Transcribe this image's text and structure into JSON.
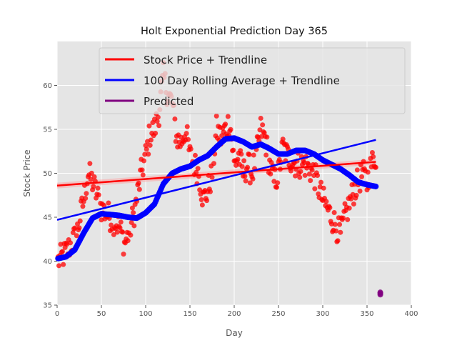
{
  "chart_data": {
    "type": "scatter",
    "title": "Holt Exponential Prediction Day 365",
    "xlabel": "Day",
    "ylabel": "Stock Price",
    "xlim": [
      0,
      400
    ],
    "ylim": [
      35,
      65
    ],
    "xticks": [
      0,
      50,
      100,
      150,
      200,
      250,
      300,
      350,
      400
    ],
    "yticks": [
      35,
      40,
      45,
      50,
      55,
      60
    ],
    "grid": true,
    "legend_position": "top-right",
    "series": [
      {
        "name": "Stock Price + Trendline",
        "color": "#ff0000",
        "marker": "circle",
        "anchors_x": [
          1,
          10,
          22,
          30,
          35,
          40,
          50,
          60,
          70,
          76,
          82,
          88,
          95,
          100,
          105,
          110,
          115,
          120,
          125,
          130,
          135,
          140,
          145,
          150,
          160,
          165,
          170,
          175,
          180,
          185,
          190,
          195,
          200,
          205,
          210,
          215,
          220,
          225,
          230,
          235,
          240,
          245,
          250,
          255,
          260,
          270,
          280,
          290,
          300,
          305,
          310,
          315,
          320,
          325,
          330,
          335,
          340,
          345,
          350,
          355,
          360
        ],
        "anchors_y": [
          40,
          41,
          43,
          47,
          50,
          49,
          46,
          45,
          44,
          42,
          43.5,
          46,
          50,
          52,
          54.5,
          55,
          57,
          61,
          59,
          58,
          54,
          53.5,
          55,
          52,
          50,
          47,
          48,
          50,
          55,
          54,
          55,
          56,
          51,
          52,
          50,
          51,
          50,
          52,
          55,
          54,
          51,
          49,
          50,
          53,
          52,
          51,
          51,
          50,
          47,
          46,
          45,
          44,
          43,
          45,
          46.5,
          48,
          49,
          50,
          49,
          51,
          52
        ],
        "trendline": {
          "x": [
            0,
            360
          ],
          "y": [
            48.6,
            51.3
          ]
        }
      },
      {
        "name": "100 Day Rolling Average + Trendline",
        "color": "#0000ff",
        "marker": "circle",
        "anchors_x": [
          1,
          10,
          20,
          30,
          40,
          50,
          60,
          70,
          80,
          90,
          100,
          110,
          120,
          130,
          140,
          150,
          160,
          170,
          180,
          190,
          200,
          210,
          220,
          230,
          240,
          250,
          260,
          270,
          280,
          290,
          300,
          310,
          320,
          330,
          340,
          350,
          360
        ],
        "anchors_y": [
          40.3,
          40.5,
          41.3,
          43.2,
          44.9,
          45.4,
          45.3,
          45.2,
          45.0,
          44.9,
          45.5,
          46.5,
          48.8,
          50.0,
          50.5,
          50.8,
          51.5,
          52.0,
          53.0,
          53.9,
          54.0,
          53.6,
          53.0,
          53.3,
          52.8,
          52.2,
          52.2,
          52.6,
          52.6,
          52.2,
          51.5,
          51.0,
          50.5,
          49.8,
          49.0,
          48.7,
          48.5
        ],
        "trendline": {
          "x": [
            0,
            360
          ],
          "y": [
            44.7,
            53.8
          ]
        }
      },
      {
        "name": "Predicted",
        "color": "#800080",
        "marker": "circle",
        "x": [
          365,
          365,
          365
        ],
        "y": [
          36.2,
          36.35,
          36.45
        ]
      }
    ]
  }
}
